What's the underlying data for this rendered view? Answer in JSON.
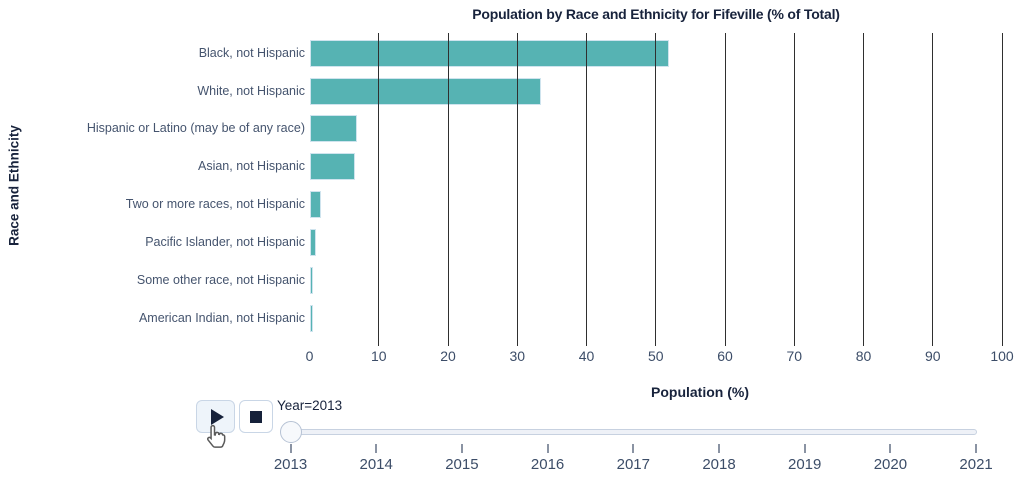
{
  "chart_data": {
    "type": "bar",
    "orientation": "horizontal",
    "title": "Population by Race and Ethnicity for Fifeville (% of Total)",
    "xlabel": "Population (%)",
    "ylabel": "Race and Ethnicity",
    "xlim": [
      0,
      100
    ],
    "xticks": [
      0,
      10,
      20,
      30,
      40,
      50,
      60,
      70,
      80,
      90,
      100
    ],
    "grid": true,
    "legend": "none",
    "categories": [
      "Black, not Hispanic",
      "White, not Hispanic",
      "Hispanic or Latino (may be of any race)",
      "Asian, not Hispanic",
      "Two or more races, not Hispanic",
      "Pacific Islander, not Hispanic",
      "Some other race, not Hispanic",
      "American Indian, not Hispanic"
    ],
    "values": [
      51.9,
      33.4,
      6.8,
      6.6,
      1.7,
      1.0,
      0.1,
      0.1
    ]
  },
  "slider": {
    "label": "Year=2013",
    "min": 2013,
    "max": 2021,
    "value": 2013,
    "tick_labels": [
      "2013",
      "2014",
      "2015",
      "2016",
      "2017",
      "2018",
      "2019",
      "2020",
      "2021"
    ]
  },
  "controls": {
    "play_icon": "play-icon",
    "stop_icon": "stop-icon"
  },
  "colors": {
    "bar": "#56b3b3",
    "bar_border": "#cfe4ee",
    "grid": "#2f2f2f",
    "text": "#45546e",
    "tick": "#3c4d68",
    "title": "#18233c",
    "track_bg": "#eef1f7",
    "track_border": "#c7d1e0",
    "handle_bg": "#f7f9fc",
    "handle_border": "#b6c2d4",
    "button_border": "#c9d6e6",
    "icon": "#16213a"
  }
}
